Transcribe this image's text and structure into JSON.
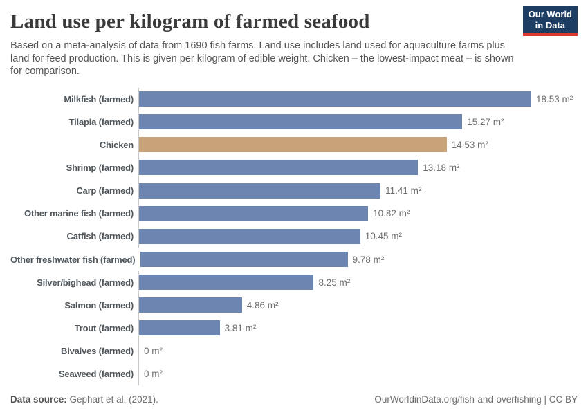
{
  "header": {
    "title": "Land use per kilogram of farmed seafood",
    "subtitle": "Based on a meta-analysis of data from 1690 fish farms. Land use includes land used for aquaculture farms plus land for feed production. This is given per kilogram of edible weight. Chicken – the lowest-impact meat – is shown for comparison.",
    "logo": {
      "line1": "Our World",
      "line2": "in Data"
    }
  },
  "chart_data": {
    "type": "bar",
    "orientation": "horizontal",
    "title": "Land use per kilogram of farmed seafood",
    "xlabel": "",
    "ylabel": "",
    "unit": "m²",
    "xlim": [
      0,
      18.53
    ],
    "grid": false,
    "value_label_position": "outside-end",
    "categories": [
      "Milkfish (farmed)",
      "Tilapia (farmed)",
      "Chicken",
      "Shrimp (farmed)",
      "Carp (farmed)",
      "Other marine fish (farmed)",
      "Catfish (farmed)",
      "Other freshwater fish (farmed)",
      "Silver/bighead (farmed)",
      "Salmon (farmed)",
      "Trout (farmed)",
      "Bivalves (farmed)",
      "Seaweed (farmed)"
    ],
    "values": [
      18.53,
      15.27,
      14.53,
      13.18,
      11.41,
      10.82,
      10.45,
      9.78,
      8.25,
      4.86,
      3.81,
      0,
      0
    ],
    "value_labels": [
      "18.53 m²",
      "15.27 m²",
      "14.53 m²",
      "13.18 m²",
      "11.41 m²",
      "10.82 m²",
      "10.45 m²",
      "9.78 m²",
      "8.25 m²",
      "4.86 m²",
      "3.81 m²",
      "0 m²",
      "0 m²"
    ],
    "bar_color": "#6c86b1",
    "highlight_color": "#c8a377",
    "highlight_index": 2
  },
  "footer": {
    "datasource_label": "Data source:",
    "datasource_value": " Gephart et al. (2021).",
    "link": "OurWorldinData.org/fish-and-overfishing | CC BY"
  },
  "colors": {
    "logo_bg": "#1d3d63",
    "logo_stripe": "#dc3a2b",
    "axis_line": "#c8c8c8",
    "title_text": "#3a3a3a",
    "subtitle_text": "#555555",
    "label_text": "#50575c",
    "value_text": "#6e6e6e"
  }
}
